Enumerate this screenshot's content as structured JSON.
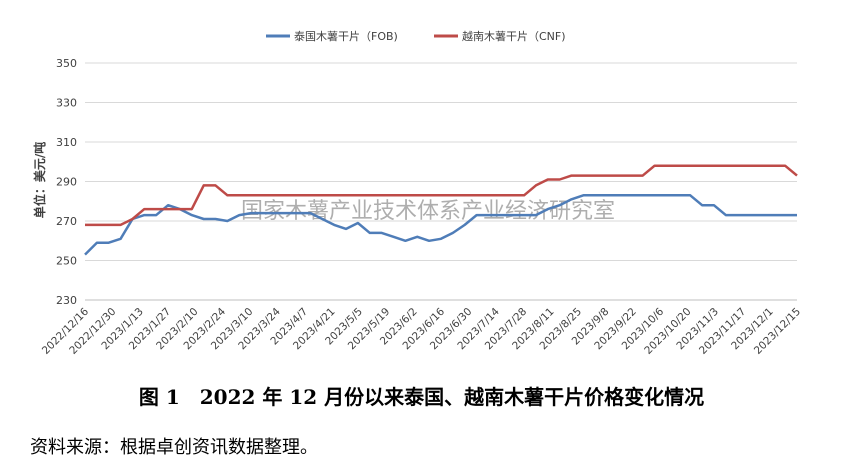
{
  "chart_data": {
    "type": "line",
    "ylabel": "单位：美元/吨",
    "ylim": [
      230,
      350
    ],
    "yticks": [
      230,
      250,
      270,
      290,
      310,
      330,
      350
    ],
    "grid": "horizontal",
    "legend": "top",
    "watermark": "国家木薯产业技术体系产业经济研究室",
    "x_tick_labels": [
      "2022/12/16",
      "2022/12/30",
      "2023/1/13",
      "2023/1/27",
      "2023/2/10",
      "2023/2/24",
      "2023/3/10",
      "2023/3/24",
      "2023/4/7",
      "2023/4/21",
      "2023/5/5",
      "2023/5/19",
      "2023/6/2",
      "2023/6/16",
      "2023/6/30",
      "2023/7/14",
      "2023/7/28",
      "2023/8/11",
      "2023/8/25",
      "2023/9/8",
      "2023/9/22",
      "2023/10/6",
      "2023/10/20",
      "2023/11/3",
      "2023/11/17",
      "2023/12/1",
      "2023/12/15"
    ],
    "series": [
      {
        "name": "泰国木薯干片（FOB)",
        "color": "#4F7DB8",
        "values": [
          253,
          259,
          259,
          261,
          271,
          273,
          273,
          278,
          276,
          273,
          271,
          271,
          270,
          273,
          274,
          274,
          274,
          274,
          274,
          274,
          271,
          268,
          266,
          269,
          264,
          264,
          262,
          260,
          262,
          260,
          261,
          264,
          268,
          273,
          273,
          273,
          273,
          273,
          273,
          276,
          278,
          281,
          283,
          283,
          283,
          283,
          283,
          283,
          283,
          283,
          283,
          283,
          278,
          278,
          273,
          273,
          273,
          273,
          273,
          273,
          273
        ]
      },
      {
        "name": "越南木薯干片（CNF)",
        "color": "#BE4B48",
        "values": [
          268,
          268,
          268,
          268,
          271,
          276,
          276,
          276,
          276,
          276,
          288,
          288,
          283,
          283,
          283,
          283,
          283,
          283,
          283,
          283,
          283,
          283,
          283,
          283,
          283,
          283,
          283,
          283,
          283,
          283,
          283,
          283,
          283,
          283,
          283,
          283,
          283,
          283,
          288,
          291,
          291,
          293,
          293,
          293,
          293,
          293,
          293,
          293,
          298,
          298,
          298,
          298,
          298,
          298,
          298,
          298,
          298,
          298,
          298,
          298,
          293
        ]
      }
    ]
  },
  "caption": "图 1　2022 年 12 月份以来泰国、越南木薯干片价格变化情况",
  "source": "资料来源：根据卓创资讯数据整理。"
}
